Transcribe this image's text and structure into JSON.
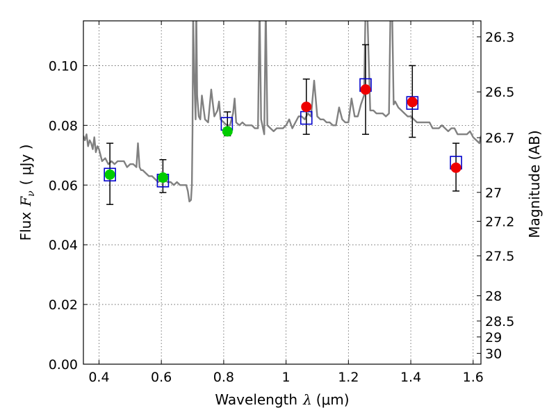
{
  "chart_data": {
    "type": "scatter",
    "xlabel": {
      "prefix": "Wavelength",
      "symbol": "λ",
      "unit": "(μm)"
    },
    "ylabel": {
      "prefix": "Flux",
      "symbol": "F",
      "subscript": "ν",
      "unit": "( μJy )"
    },
    "y2label": "Magnitude (AB)",
    "xlim": [
      0.35,
      1.625
    ],
    "ylim": [
      0.0,
      0.115
    ],
    "grid": true,
    "x_ticks": [
      0.4,
      0.6,
      0.8,
      1.0,
      1.2,
      1.4,
      1.6
    ],
    "x_tick_labels": [
      "0.4",
      "0.6",
      "0.8",
      "1",
      "1.2",
      "1.4",
      "1.6"
    ],
    "y_ticks": [
      0.0,
      0.02,
      0.04,
      0.06,
      0.08,
      0.1
    ],
    "y_tick_labels": [
      "0.00",
      "0.02",
      "0.04",
      "0.06",
      "0.08",
      "0.10"
    ],
    "y2_ticks": [
      {
        "label": "26.3",
        "mag": 26.3
      },
      {
        "label": "26.5",
        "mag": 26.5
      },
      {
        "label": "26.7",
        "mag": 26.7
      },
      {
        "label": "27",
        "mag": 27.0
      },
      {
        "label": "27.2",
        "mag": 27.2
      },
      {
        "label": "27.5",
        "mag": 27.5
      },
      {
        "label": "28",
        "mag": 28.0
      },
      {
        "label": "28.5",
        "mag": 28.5
      },
      {
        "label": "29",
        "mag": 29.0
      },
      {
        "label": "30",
        "mag": 30.0
      }
    ],
    "colors": {
      "model": "#808080",
      "model_points": "#0000cc",
      "observed_green": "#00cc00",
      "observed_red": "#ee0000",
      "errorbar": "#000000",
      "grid": "#555555"
    },
    "model_spectrum": {
      "x": [
        0.35,
        0.355,
        0.36,
        0.365,
        0.37,
        0.375,
        0.38,
        0.385,
        0.39,
        0.395,
        0.4,
        0.41,
        0.42,
        0.43,
        0.44,
        0.45,
        0.46,
        0.47,
        0.48,
        0.49,
        0.5,
        0.51,
        0.52,
        0.525,
        0.53,
        0.535,
        0.54,
        0.55,
        0.56,
        0.57,
        0.58,
        0.59,
        0.6,
        0.61,
        0.62,
        0.63,
        0.64,
        0.65,
        0.66,
        0.67,
        0.68,
        0.685,
        0.69,
        0.695,
        0.698,
        0.7,
        0.702,
        0.705,
        0.71,
        0.712,
        0.715,
        0.72,
        0.725,
        0.73,
        0.74,
        0.75,
        0.76,
        0.77,
        0.78,
        0.785,
        0.79,
        0.8,
        0.81,
        0.82,
        0.83,
        0.835,
        0.84,
        0.85,
        0.86,
        0.87,
        0.88,
        0.89,
        0.9,
        0.91,
        0.915,
        0.92,
        0.93,
        0.935,
        0.94,
        0.95,
        0.96,
        0.97,
        0.98,
        0.99,
        1.0,
        1.01,
        1.02,
        1.03,
        1.04,
        1.05,
        1.06,
        1.07,
        1.08,
        1.09,
        1.1,
        1.11,
        1.12,
        1.13,
        1.14,
        1.15,
        1.16,
        1.17,
        1.18,
        1.19,
        1.2,
        1.21,
        1.22,
        1.23,
        1.24,
        1.25,
        1.255,
        1.26,
        1.27,
        1.28,
        1.29,
        1.3,
        1.31,
        1.32,
        1.33,
        1.335,
        1.34,
        1.345,
        1.35,
        1.36,
        1.37,
        1.38,
        1.39,
        1.4,
        1.41,
        1.42,
        1.43,
        1.44,
        1.45,
        1.46,
        1.47,
        1.48,
        1.49,
        1.5,
        1.51,
        1.52,
        1.53,
        1.54,
        1.55,
        1.56,
        1.57,
        1.58,
        1.59,
        1.6,
        1.61,
        1.62,
        1.625
      ],
      "y": [
        0.0765,
        0.075,
        0.077,
        0.073,
        0.075,
        0.074,
        0.072,
        0.076,
        0.071,
        0.073,
        0.072,
        0.068,
        0.069,
        0.067,
        0.068,
        0.067,
        0.068,
        0.068,
        0.068,
        0.066,
        0.067,
        0.067,
        0.066,
        0.074,
        0.066,
        0.065,
        0.065,
        0.064,
        0.063,
        0.063,
        0.062,
        0.061,
        0.062,
        0.062,
        0.061,
        0.061,
        0.06,
        0.061,
        0.06,
        0.06,
        0.06,
        0.058,
        0.0545,
        0.055,
        0.06,
        0.078,
        0.118,
        0.098,
        0.082,
        0.12,
        0.09,
        0.083,
        0.082,
        0.09,
        0.082,
        0.081,
        0.092,
        0.083,
        0.085,
        0.088,
        0.082,
        0.081,
        0.08,
        0.08,
        0.084,
        0.089,
        0.081,
        0.08,
        0.081,
        0.08,
        0.08,
        0.08,
        0.079,
        0.079,
        0.12,
        0.082,
        0.077,
        0.12,
        0.08,
        0.079,
        0.078,
        0.079,
        0.079,
        0.079,
        0.08,
        0.082,
        0.079,
        0.081,
        0.083,
        0.083,
        0.082,
        0.084,
        0.083,
        0.095,
        0.083,
        0.082,
        0.082,
        0.081,
        0.081,
        0.08,
        0.08,
        0.086,
        0.082,
        0.081,
        0.081,
        0.089,
        0.083,
        0.083,
        0.087,
        0.09,
        0.12,
        0.12,
        0.085,
        0.085,
        0.084,
        0.084,
        0.084,
        0.083,
        0.084,
        0.12,
        0.12,
        0.087,
        0.088,
        0.086,
        0.085,
        0.084,
        0.083,
        0.083,
        0.082,
        0.081,
        0.081,
        0.081,
        0.081,
        0.081,
        0.079,
        0.079,
        0.079,
        0.08,
        0.079,
        0.078,
        0.079,
        0.079,
        0.077,
        0.077,
        0.077,
        0.077,
        0.078,
        0.076,
        0.075,
        0.074,
        0.0765
      ]
    },
    "model_photometry": [
      {
        "x": 0.435,
        "y": 0.0635
      },
      {
        "x": 0.605,
        "y": 0.0615
      },
      {
        "x": 0.81,
        "y": 0.0805
      },
      {
        "x": 1.065,
        "y": 0.0825
      },
      {
        "x": 1.255,
        "y": 0.0935
      },
      {
        "x": 1.405,
        "y": 0.0875
      },
      {
        "x": 1.545,
        "y": 0.0675
      }
    ],
    "observed": [
      {
        "x": 0.435,
        "y": 0.0635,
        "err_low": 0.0535,
        "err_high": 0.074,
        "color": "green"
      },
      {
        "x": 0.605,
        "y": 0.0625,
        "err_low": 0.0575,
        "err_high": 0.0685,
        "color": "green"
      },
      {
        "x": 0.812,
        "y": 0.078,
        "err_low": 0.0765,
        "err_high": 0.0845,
        "color": "green"
      },
      {
        "x": 1.065,
        "y": 0.0862,
        "err_low": 0.077,
        "err_high": 0.0955,
        "color": "red"
      },
      {
        "x": 1.255,
        "y": 0.092,
        "err_low": 0.077,
        "err_high": 0.107,
        "color": "red"
      },
      {
        "x": 1.405,
        "y": 0.0878,
        "err_low": 0.076,
        "err_high": 0.1,
        "color": "red"
      },
      {
        "x": 1.545,
        "y": 0.0658,
        "err_low": 0.058,
        "err_high": 0.074,
        "color": "red"
      }
    ]
  }
}
